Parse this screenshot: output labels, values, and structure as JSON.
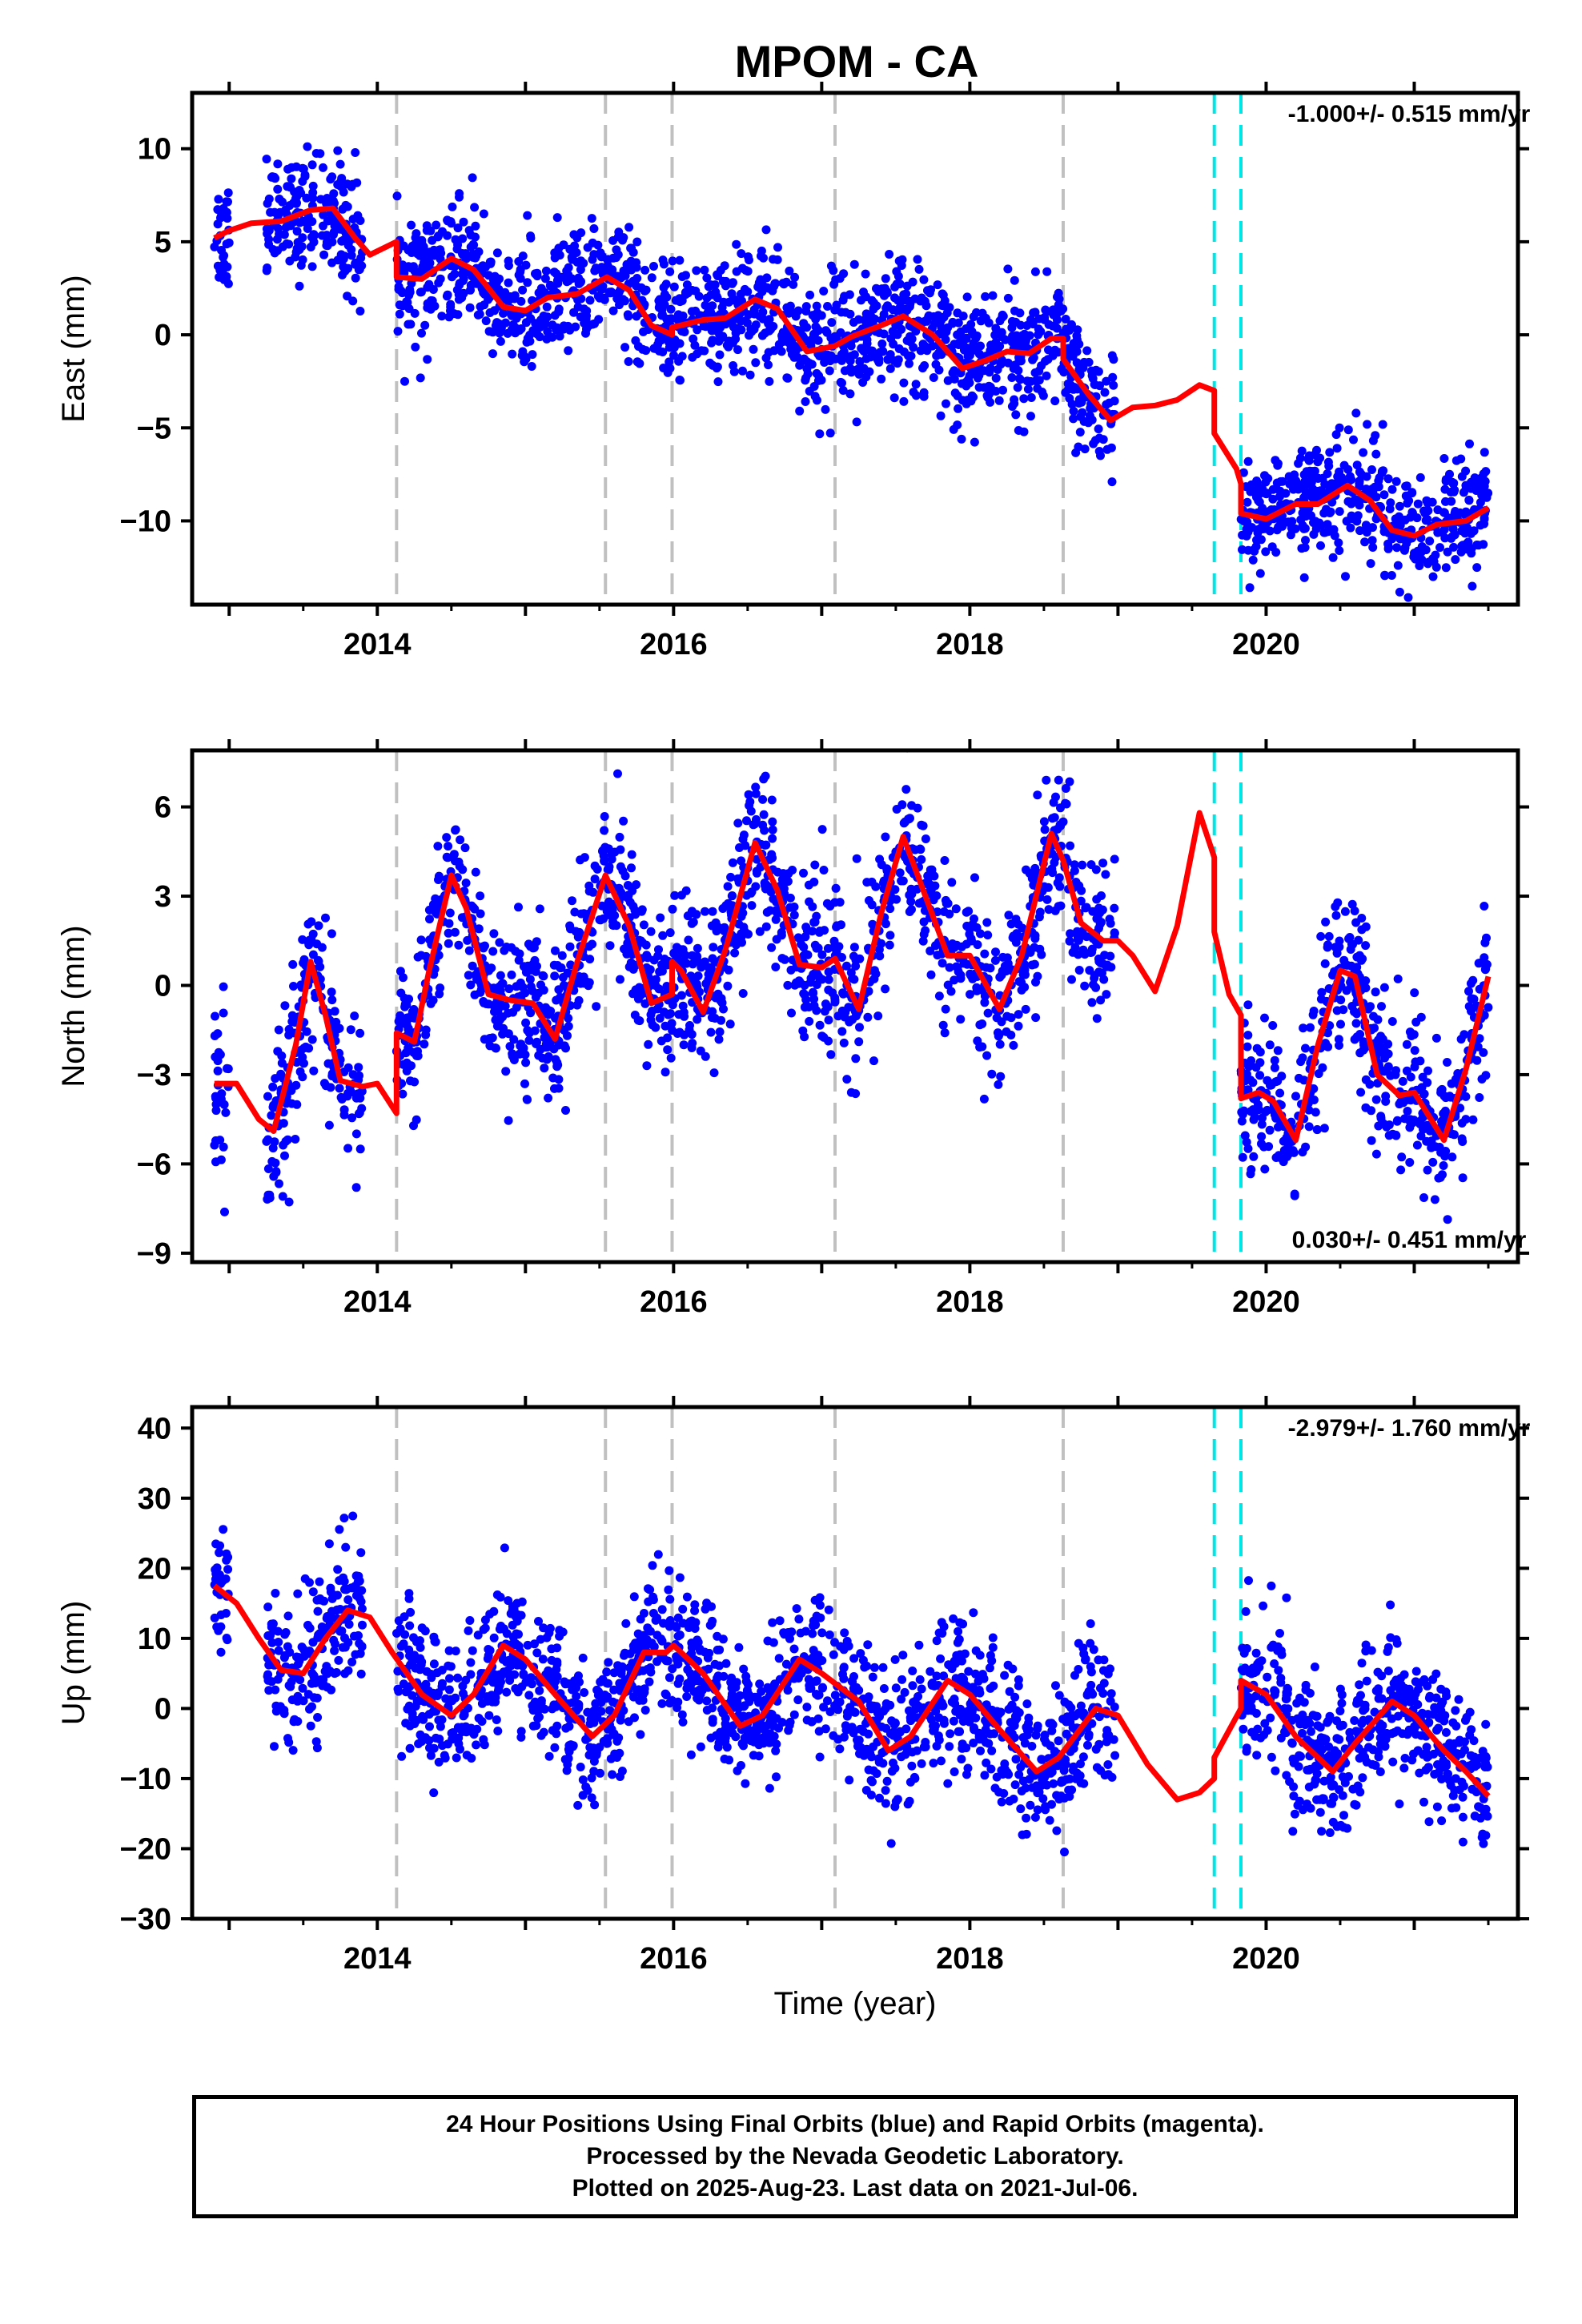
{
  "title": "MPOM - CA",
  "xlabel": "Time (year)",
  "footer": {
    "line1": "24 Hour Positions Using Final Orbits (blue) and Rapid Orbits (magenta).",
    "line2": "Processed by the Nevada Geodetic Laboratory.",
    "line3": "Plotted on 2025-Aug-23. Last data on 2021-Jul-06."
  },
  "colors": {
    "data": "#0000ff",
    "model": "#ff0000",
    "equipment_change": "#c0c0c0",
    "earthquake": "#00e5e5"
  },
  "chart_data": [
    {
      "type": "scatter",
      "name": "east",
      "ylabel": "East (mm)",
      "xlim": [
        2012.75,
        2021.7
      ],
      "ylim": [
        -14.5,
        13
      ],
      "yticks": [
        -10,
        -5,
        0,
        5,
        10
      ],
      "ytick_labels": [
        "−10",
        "−5",
        "0",
        "5",
        "10"
      ],
      "xticks": [
        2014,
        2016,
        2018,
        2020
      ],
      "xtick_labels": [
        "2014",
        "2016",
        "2018",
        "2020"
      ],
      "rate": "-1.000+/- 0.515 mm/yr",
      "rate_position": "top-right",
      "equipment_changes": [
        2014.13,
        2015.54,
        2015.99,
        2017.09,
        2018.63
      ],
      "earthquakes": [
        2019.65,
        2019.83
      ],
      "scatter_std": 1.6,
      "data_segments": [
        [
          2012.9,
          2013.0
        ],
        [
          2013.25,
          2013.9
        ],
        [
          2014.13,
          2018.98
        ],
        [
          2019.83,
          2021.5
        ]
      ],
      "model": [
        [
          2012.9,
          5.2
        ],
        [
          2013.0,
          5.6
        ],
        [
          2013.15,
          6.0
        ],
        [
          2013.35,
          6.1
        ],
        [
          2013.55,
          6.7
        ],
        [
          2013.7,
          6.8
        ],
        [
          2013.85,
          5.2
        ],
        [
          2013.95,
          4.3
        ],
        [
          2014.13,
          5.0
        ],
        [
          2014.13,
          3.1
        ],
        [
          2014.3,
          3.0
        ],
        [
          2014.5,
          4.1
        ],
        [
          2014.65,
          3.5
        ],
        [
          2014.85,
          1.5
        ],
        [
          2015.0,
          1.3
        ],
        [
          2015.15,
          2.0
        ],
        [
          2015.35,
          2.2
        ],
        [
          2015.55,
          3.1
        ],
        [
          2015.7,
          2.4
        ],
        [
          2015.85,
          0.5
        ],
        [
          2015.99,
          0.0
        ],
        [
          2015.99,
          0.4
        ],
        [
          2016.2,
          0.8
        ],
        [
          2016.35,
          0.9
        ],
        [
          2016.55,
          1.9
        ],
        [
          2016.7,
          1.4
        ],
        [
          2016.9,
          -0.9
        ],
        [
          2017.09,
          -0.6
        ],
        [
          2017.2,
          -0.1
        ],
        [
          2017.4,
          0.5
        ],
        [
          2017.55,
          1.0
        ],
        [
          2017.75,
          0.0
        ],
        [
          2017.95,
          -1.8
        ],
        [
          2018.1,
          -1.4
        ],
        [
          2018.25,
          -0.9
        ],
        [
          2018.4,
          -1.0
        ],
        [
          2018.55,
          -0.2
        ],
        [
          2018.63,
          -0.2
        ],
        [
          2018.63,
          -1.3
        ],
        [
          2018.8,
          -3.2
        ],
        [
          2018.95,
          -4.6
        ],
        [
          2019.1,
          -3.9
        ],
        [
          2019.25,
          -3.8
        ],
        [
          2019.4,
          -3.5
        ],
        [
          2019.55,
          -2.7
        ],
        [
          2019.65,
          -3.0
        ],
        [
          2019.65,
          -5.3
        ],
        [
          2019.8,
          -7.2
        ],
        [
          2019.83,
          -8.0
        ],
        [
          2019.83,
          -9.6
        ],
        [
          2020.0,
          -9.9
        ],
        [
          2020.2,
          -9.1
        ],
        [
          2020.35,
          -9.1
        ],
        [
          2020.55,
          -8.1
        ],
        [
          2020.7,
          -8.9
        ],
        [
          2020.85,
          -10.5
        ],
        [
          2021.0,
          -10.8
        ],
        [
          2021.15,
          -10.2
        ],
        [
          2021.35,
          -10.0
        ],
        [
          2021.5,
          -9.3
        ]
      ]
    },
    {
      "type": "scatter",
      "name": "north",
      "ylabel": "North (mm)",
      "xlim": [
        2012.75,
        2021.7
      ],
      "ylim": [
        -9.3,
        7.9
      ],
      "yticks": [
        -9,
        -6,
        -3,
        0,
        3,
        6
      ],
      "ytick_labels": [
        "−9",
        "−6",
        "−3",
        "0",
        "3",
        "6"
      ],
      "xticks": [
        2014,
        2016,
        2018,
        2020
      ],
      "xtick_labels": [
        "2014",
        "2016",
        "2018",
        "2020"
      ],
      "rate": "0.030+/- 0.451 mm/yr",
      "rate_position": "bottom-right",
      "equipment_changes": [
        2014.13,
        2015.54,
        2015.99,
        2017.09,
        2018.63
      ],
      "earthquakes": [
        2019.65,
        2019.83
      ],
      "scatter_std": 1.3,
      "data_segments": [
        [
          2012.9,
          2013.0
        ],
        [
          2013.25,
          2013.9
        ],
        [
          2014.13,
          2018.98
        ],
        [
          2019.83,
          2021.5
        ]
      ],
      "model": [
        [
          2012.9,
          -3.3
        ],
        [
          2013.05,
          -3.3
        ],
        [
          2013.2,
          -4.5
        ],
        [
          2013.3,
          -4.9
        ],
        [
          2013.45,
          -2.0
        ],
        [
          2013.55,
          0.8
        ],
        [
          2013.65,
          -1.0
        ],
        [
          2013.75,
          -3.2
        ],
        [
          2013.9,
          -3.4
        ],
        [
          2014.0,
          -3.3
        ],
        [
          2014.13,
          -4.3
        ],
        [
          2014.13,
          -1.6
        ],
        [
          2014.25,
          -1.9
        ],
        [
          2014.35,
          0.5
        ],
        [
          2014.5,
          3.7
        ],
        [
          2014.6,
          2.6
        ],
        [
          2014.75,
          -0.3
        ],
        [
          2014.9,
          -0.5
        ],
        [
          2015.05,
          -0.6
        ],
        [
          2015.2,
          -1.8
        ],
        [
          2015.35,
          0.8
        ],
        [
          2015.54,
          3.7
        ],
        [
          2015.7,
          2.0
        ],
        [
          2015.85,
          -0.6
        ],
        [
          2015.99,
          -0.3
        ],
        [
          2015.99,
          0.8
        ],
        [
          2016.05,
          0.5
        ],
        [
          2016.2,
          -0.9
        ],
        [
          2016.35,
          1.2
        ],
        [
          2016.55,
          4.8
        ],
        [
          2016.7,
          3.2
        ],
        [
          2016.85,
          0.7
        ],
        [
          2017.0,
          0.6
        ],
        [
          2017.09,
          0.9
        ],
        [
          2017.25,
          -0.8
        ],
        [
          2017.4,
          2.4
        ],
        [
          2017.55,
          5.0
        ],
        [
          2017.7,
          3.0
        ],
        [
          2017.85,
          1.0
        ],
        [
          2018.0,
          1.0
        ],
        [
          2018.2,
          -0.8
        ],
        [
          2018.35,
          1.0
        ],
        [
          2018.55,
          5.1
        ],
        [
          2018.63,
          4.2
        ],
        [
          2018.75,
          2.1
        ],
        [
          2018.9,
          1.5
        ],
        [
          2019.0,
          1.5
        ],
        [
          2019.1,
          1.0
        ],
        [
          2019.25,
          -0.2
        ],
        [
          2019.4,
          2.0
        ],
        [
          2019.55,
          5.8
        ],
        [
          2019.65,
          4.3
        ],
        [
          2019.65,
          1.8
        ],
        [
          2019.75,
          -0.3
        ],
        [
          2019.83,
          -1.0
        ],
        [
          2019.83,
          -3.8
        ],
        [
          2019.95,
          -3.6
        ],
        [
          2020.05,
          -3.9
        ],
        [
          2020.2,
          -5.2
        ],
        [
          2020.35,
          -2.0
        ],
        [
          2020.5,
          0.5
        ],
        [
          2020.6,
          0.3
        ],
        [
          2020.75,
          -3.0
        ],
        [
          2020.9,
          -3.7
        ],
        [
          2021.0,
          -3.6
        ],
        [
          2021.1,
          -4.4
        ],
        [
          2021.2,
          -5.2
        ],
        [
          2021.35,
          -2.8
        ],
        [
          2021.5,
          0.3
        ]
      ]
    },
    {
      "type": "scatter",
      "name": "up",
      "ylabel": "Up (mm)",
      "xlim": [
        2012.75,
        2021.7
      ],
      "ylim": [
        -30,
        43
      ],
      "yticks": [
        -30,
        -20,
        -10,
        0,
        10,
        20,
        30,
        40
      ],
      "ytick_labels": [
        "−30",
        "−20",
        "−10",
        "0",
        "10",
        "20",
        "30",
        "40"
      ],
      "xticks": [
        2014,
        2016,
        2018,
        2020
      ],
      "xtick_labels": [
        "2014",
        "2016",
        "2018",
        "2020"
      ],
      "rate": "-2.979+/- 1.760 mm/yr",
      "rate_position": "top-right",
      "equipment_changes": [
        2014.13,
        2015.54,
        2015.99,
        2017.09,
        2018.63
      ],
      "earthquakes": [
        2019.65,
        2019.83
      ],
      "scatter_std": 5.0,
      "data_segments": [
        [
          2012.9,
          2013.0
        ],
        [
          2013.25,
          2013.9
        ],
        [
          2014.13,
          2018.98
        ],
        [
          2019.83,
          2021.5
        ]
      ],
      "model": [
        [
          2012.9,
          17.5
        ],
        [
          2013.05,
          15.0
        ],
        [
          2013.2,
          10.0
        ],
        [
          2013.35,
          5.5
        ],
        [
          2013.5,
          5.0
        ],
        [
          2013.65,
          10.0
        ],
        [
          2013.8,
          14.0
        ],
        [
          2013.95,
          13.0
        ],
        [
          2014.1,
          8.0
        ],
        [
          2014.3,
          2.0
        ],
        [
          2014.5,
          -1.0
        ],
        [
          2014.65,
          2.0
        ],
        [
          2014.85,
          9.0
        ],
        [
          2015.0,
          7.0
        ],
        [
          2015.2,
          2.0
        ],
        [
          2015.45,
          -4.0
        ],
        [
          2015.6,
          -1.0
        ],
        [
          2015.8,
          8.0
        ],
        [
          2015.95,
          8.0
        ],
        [
          2016.0,
          9.0
        ],
        [
          2016.2,
          5.0
        ],
        [
          2016.45,
          -2.5
        ],
        [
          2016.6,
          -1.0
        ],
        [
          2016.85,
          7.0
        ],
        [
          2017.0,
          5.0
        ],
        [
          2017.25,
          1.0
        ],
        [
          2017.45,
          -6.0
        ],
        [
          2017.6,
          -4.0
        ],
        [
          2017.85,
          4.0
        ],
        [
          2018.0,
          2.0
        ],
        [
          2018.2,
          -3.0
        ],
        [
          2018.45,
          -9.0
        ],
        [
          2018.6,
          -7.0
        ],
        [
          2018.85,
          0.0
        ],
        [
          2019.0,
          -1.0
        ],
        [
          2019.2,
          -8.0
        ],
        [
          2019.4,
          -13.0
        ],
        [
          2019.55,
          -12.0
        ],
        [
          2019.65,
          -10.0
        ],
        [
          2019.65,
          -7.0
        ],
        [
          2019.83,
          0.0
        ],
        [
          2019.83,
          4.0
        ],
        [
          2020.0,
          2.0
        ],
        [
          2020.2,
          -4.0
        ],
        [
          2020.45,
          -9.0
        ],
        [
          2020.6,
          -5.0
        ],
        [
          2020.85,
          1.0
        ],
        [
          2021.0,
          -1.0
        ],
        [
          2021.2,
          -6.0
        ],
        [
          2021.35,
          -9.0
        ],
        [
          2021.5,
          -12.5
        ]
      ]
    }
  ]
}
